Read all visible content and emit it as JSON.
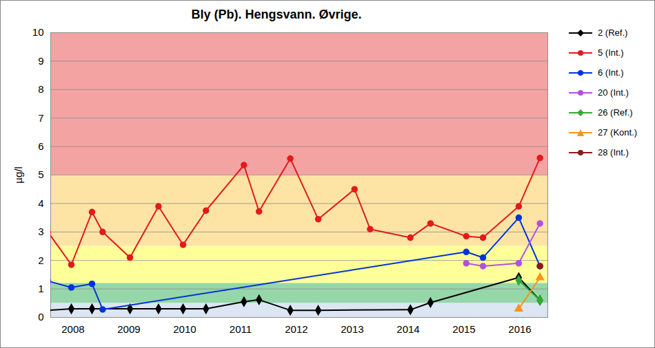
{
  "chart_data": {
    "type": "line",
    "title": "Bly (Pb).  Hengsvann. Øvrige.",
    "ylabel": "µg/l",
    "xlim": [
      2008.1,
      2017
    ],
    "xticks": [
      {
        "value": 2008.5,
        "label": "2008"
      },
      {
        "value": 2009.5,
        "label": "2009"
      },
      {
        "value": 2010.5,
        "label": "2010"
      },
      {
        "value": 2011.5,
        "label": "2011"
      },
      {
        "value": 2012.5,
        "label": "2012"
      },
      {
        "value": 2013.5,
        "label": "2013"
      },
      {
        "value": 2014.5,
        "label": "2014"
      },
      {
        "value": 2015.5,
        "label": "2015"
      },
      {
        "value": 2016.5,
        "label": "2016"
      }
    ],
    "ylim": [
      0,
      10
    ],
    "yticks": [
      0,
      1,
      2,
      3,
      4,
      5,
      6,
      7,
      8,
      9,
      10
    ],
    "grid": true,
    "legend": "right",
    "bands": [
      {
        "from": 0,
        "to": 0.5,
        "color": "#dce6f2"
      },
      {
        "from": 0.5,
        "to": 1.2,
        "color": "#95d7a9"
      },
      {
        "from": 1.2,
        "to": 2.5,
        "color": "#ffff99"
      },
      {
        "from": 2.5,
        "to": 5,
        "color": "#fde4a5"
      },
      {
        "from": 5,
        "to": 10,
        "color": "#f4a3a3"
      }
    ],
    "series": [
      {
        "name": "2 (Ref.)",
        "color": "#000000",
        "marker": "diamond",
        "x": [
          2008.05,
          2008.47,
          2008.84,
          2009.52,
          2010.03,
          2010.47,
          2010.88,
          2011.56,
          2011.83,
          2012.39,
          2012.89,
          2014.54,
          2014.9,
          2016.48,
          2016.86
        ],
        "values": [
          0.25,
          0.3,
          0.3,
          0.3,
          0.3,
          0.3,
          0.3,
          0.55,
          0.62,
          0.25,
          0.25,
          0.27,
          0.52,
          1.4,
          0.6
        ]
      },
      {
        "name": "5 (Int.)",
        "color": "#e31a1c",
        "marker": "circle",
        "x": [
          2008.05,
          2008.47,
          2008.84,
          2009.03,
          2009.52,
          2010.03,
          2010.47,
          2010.88,
          2011.56,
          2011.83,
          2012.39,
          2012.89,
          2013.54,
          2013.82,
          2014.54,
          2014.9,
          2015.54,
          2015.84,
          2016.48,
          2016.86
        ],
        "values": [
          3.0,
          1.85,
          3.7,
          3.0,
          2.1,
          3.9,
          2.55,
          3.75,
          5.35,
          3.72,
          5.58,
          3.45,
          4.5,
          3.1,
          2.8,
          3.3,
          2.85,
          2.8,
          3.9,
          5.6
        ]
      },
      {
        "name": "6 (Int.)",
        "color": "#0033dd",
        "marker": "circle",
        "x": [
          2008.05,
          2008.47,
          2008.84,
          2009.03,
          2015.54,
          2015.84,
          2016.48,
          2016.86
        ],
        "values": [
          1.28,
          1.05,
          1.18,
          0.28,
          2.3,
          2.1,
          3.5,
          1.8
        ]
      },
      {
        "name": "20 (Int.)",
        "color": "#b050e0",
        "marker": "circle",
        "x": [
          2015.54,
          2015.84,
          2016.48,
          2016.86
        ],
        "values": [
          1.9,
          1.8,
          1.9,
          3.3
        ]
      },
      {
        "name": "26 (Ref.)",
        "color": "#33aa33",
        "marker": "diamond",
        "x": [
          2016.48,
          2016.86
        ],
        "values": [
          1.3,
          0.6
        ]
      },
      {
        "name": "27 (Kont.)",
        "color": "#f7941d",
        "marker": "triangle",
        "x": [
          2016.48,
          2016.86
        ],
        "values": [
          0.3,
          1.4
        ]
      },
      {
        "name": "28 (Int.)",
        "color": "#8b1a1a",
        "marker": "circle",
        "x": [
          2016.86
        ],
        "values": [
          1.8
        ]
      }
    ]
  }
}
